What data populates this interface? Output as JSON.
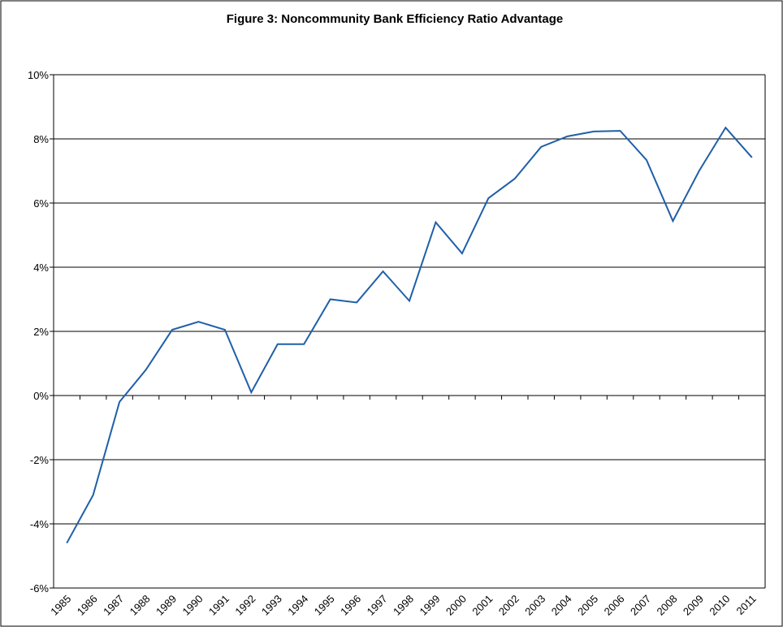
{
  "chart_data": {
    "type": "line",
    "title": "Figure 3: Noncommunity Bank Efficiency Ratio Advantage",
    "categories": [
      "1985",
      "1986",
      "1987",
      "1988",
      "1989",
      "1990",
      "1991",
      "1992",
      "1993",
      "1994",
      "1995",
      "1996",
      "1997",
      "1998",
      "1999",
      "2000",
      "2001",
      "2002",
      "2003",
      "2004",
      "2005",
      "2006",
      "2007",
      "2008",
      "2009",
      "2010",
      "2011"
    ],
    "values": [
      -4.6,
      -3.1,
      -0.2,
      0.8,
      2.05,
      2.3,
      2.05,
      0.1,
      1.6,
      1.6,
      3.0,
      2.9,
      3.87,
      2.95,
      5.4,
      4.43,
      6.15,
      6.76,
      7.75,
      8.08,
      8.23,
      8.25,
      7.34,
      5.44,
      7.01,
      8.35,
      7.42
    ],
    "color": "#1f5fa8",
    "ylim": [
      -6,
      10
    ],
    "yticks": [
      {
        "value": -6,
        "label": "-6%"
      },
      {
        "value": -4,
        "label": "-4%"
      },
      {
        "value": -2,
        "label": "-2%"
      },
      {
        "value": 0,
        "label": "0%"
      },
      {
        "value": 2,
        "label": "2%"
      },
      {
        "value": 4,
        "label": "4%"
      },
      {
        "value": 6,
        "label": "6%"
      },
      {
        "value": 8,
        "label": "8%"
      },
      {
        "value": 10,
        "label": "10%"
      }
    ],
    "grid": true
  }
}
